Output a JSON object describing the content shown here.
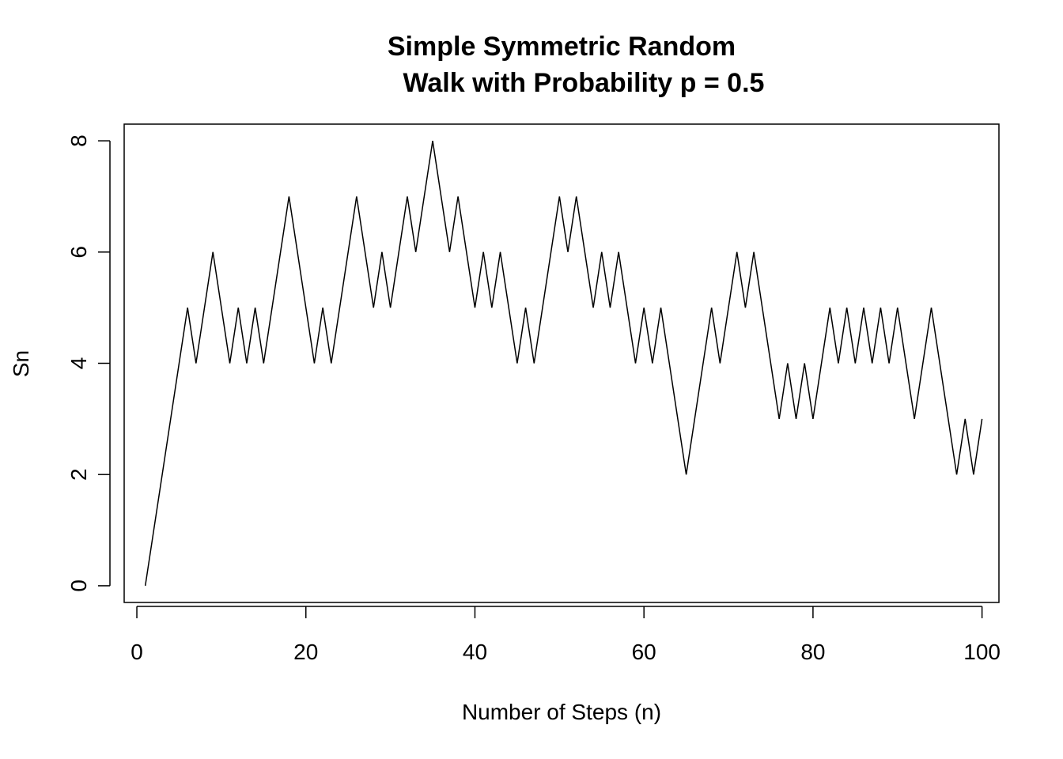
{
  "chart_data": {
    "type": "line",
    "title_line1": "Simple Symmetric Random",
    "title_line2": "Walk with Probability p = 0.5",
    "xlabel": "Number of Steps (n)",
    "ylabel": "Sn",
    "xlim": [
      -1.5,
      102
    ],
    "ylim": [
      -0.3,
      8.3
    ],
    "x_ticks": [
      0,
      20,
      40,
      60,
      80,
      100
    ],
    "x_tick_labels": [
      "0",
      "20",
      "40",
      "60",
      "80",
      "100"
    ],
    "y_ticks": [
      0,
      2,
      4,
      6,
      8
    ],
    "y_tick_labels": [
      "0",
      "2",
      "4",
      "6",
      "8"
    ],
    "grid": false,
    "series": [
      {
        "x": [
          1,
          2,
          3,
          4,
          5,
          6,
          7,
          8,
          9,
          10,
          11,
          12,
          13,
          14,
          15,
          16,
          17,
          18,
          19,
          20,
          21,
          22,
          23,
          24,
          25,
          26,
          27,
          28,
          29,
          30,
          31,
          32,
          33,
          34,
          35,
          36,
          37,
          38,
          39,
          40,
          41,
          42,
          43,
          44,
          45,
          46,
          47,
          48,
          49,
          50,
          51,
          52,
          53,
          54,
          55,
          56,
          57,
          58,
          59,
          60,
          61,
          62,
          63,
          64,
          65,
          66,
          67,
          68,
          69,
          70,
          71,
          72,
          73,
          74,
          75,
          76,
          77,
          78,
          79,
          80,
          81,
          82,
          83,
          84,
          85,
          86,
          87,
          88,
          89,
          90,
          91,
          92,
          93,
          94,
          95,
          96,
          97,
          98,
          99,
          100
        ],
        "y": [
          0,
          1,
          2,
          3,
          4,
          5,
          4,
          5,
          6,
          5,
          4,
          5,
          4,
          5,
          4,
          5,
          6,
          7,
          6,
          5,
          4,
          5,
          4,
          5,
          6,
          7,
          6,
          5,
          6,
          5,
          6,
          7,
          6,
          7,
          8,
          7,
          6,
          7,
          6,
          5,
          6,
          5,
          6,
          5,
          4,
          5,
          4,
          5,
          6,
          7,
          6,
          7,
          6,
          5,
          6,
          5,
          6,
          5,
          4,
          5,
          4,
          5,
          4,
          3,
          2,
          3,
          4,
          5,
          4,
          5,
          6,
          5,
          6,
          5,
          4,
          3,
          4,
          3,
          4,
          3,
          4,
          5,
          4,
          5,
          4,
          5,
          4,
          5,
          4,
          5,
          4,
          3,
          4,
          5,
          4,
          3,
          2,
          3,
          2,
          3
        ]
      }
    ]
  }
}
